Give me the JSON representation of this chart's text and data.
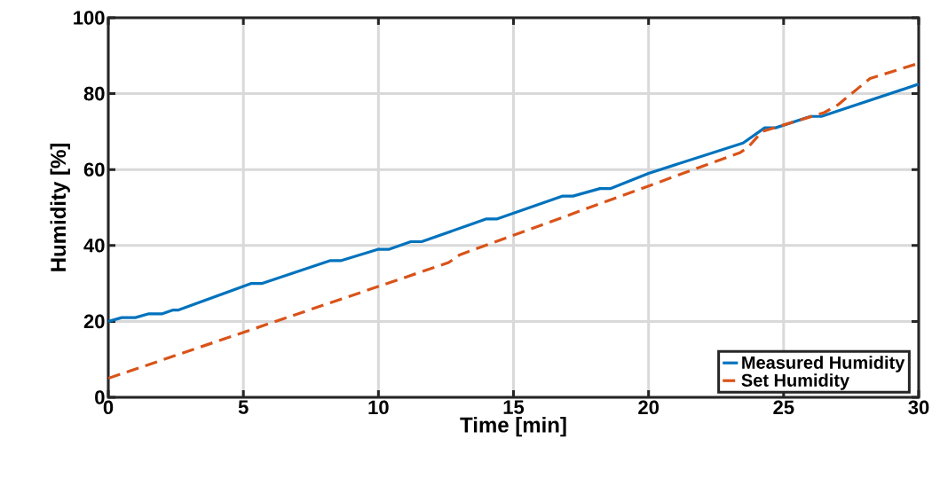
{
  "chart_data": {
    "type": "line",
    "xlabel": "Time [min]",
    "ylabel": "Humidity [%]",
    "xlim": [
      0,
      30
    ],
    "ylim": [
      0,
      100
    ],
    "xticks": [
      0,
      5,
      10,
      15,
      20,
      25,
      30
    ],
    "yticks": [
      0,
      20,
      40,
      60,
      80,
      100
    ],
    "grid": true,
    "legend": "bottom right",
    "series": [
      {
        "name": "Measured Humidity",
        "color": "#0072bd",
        "line_style": "solid",
        "x": [
          0,
          0.5,
          1,
          1.5,
          2,
          2.4,
          2.6,
          5.3,
          5.7,
          8.2,
          8.6,
          10,
          10.4,
          11.2,
          11.6,
          14,
          14.4,
          16.8,
          17.2,
          18.2,
          18.6,
          20,
          23.5,
          24.3,
          24.7,
          26,
          26.4,
          30
        ],
        "values": [
          20,
          21,
          21,
          22,
          22,
          23,
          23,
          30,
          30,
          36,
          36,
          39,
          39,
          41,
          41,
          47,
          47,
          53,
          53,
          55,
          55,
          59,
          67,
          71,
          71,
          74,
          74,
          82.5
        ]
      },
      {
        "name": "Set Humidity",
        "color": "#d95319",
        "line_style": "dashed",
        "x": [
          0,
          12.6,
          13,
          23.4,
          23.7,
          24.2,
          26.5,
          27,
          28.2,
          30
        ],
        "values": [
          5,
          35.5,
          37.5,
          64.5,
          66,
          70,
          75,
          77,
          84,
          88
        ]
      }
    ]
  }
}
